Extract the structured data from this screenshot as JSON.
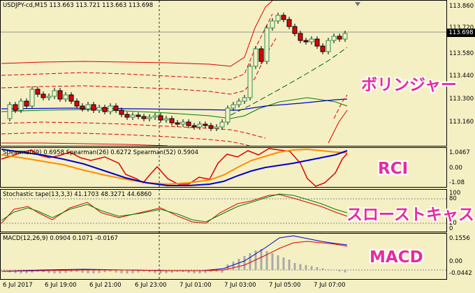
{
  "main_header": "USDJPY-cd,M15  113.663 113.721 113.663 113.698",
  "price_tag": "113.698",
  "main_axis": [
    "113.860",
    "113.720",
    "113.580",
    "113.440",
    "113.300",
    "113.160"
  ],
  "rci_header": "Spearman(9) 0.6958  Spearman(26) 0.6272  Spearman(52) 0.5904",
  "rci_axis": [
    "1.0467",
    "0.00",
    "-1.08"
  ],
  "stoch_header": "Stochastic tape(13,3,3) 41.1703  48.3271  44.6860",
  "stoch_axis": [
    "100",
    "80",
    "20",
    "0"
  ],
  "macd_header": "MACD(12,26,9) 0.0904  0.1071  -0.0167",
  "macd_axis": [
    "0.1556",
    "0.00",
    "-0.0442"
  ],
  "time_axis": [
    "6 Jul 2017",
    "6 Jul 19:00",
    "6 Jul 21:00",
    "6 Jul 23:00",
    "7 Jul 01:00",
    "7 Jul 03:00",
    "7 Jul 05:00",
    "7 Jul 07:00"
  ],
  "annotations": {
    "bollinger": "ボリンジャー",
    "rci": "RCI",
    "stochastic": "スローストキャス",
    "macd": "MACD"
  },
  "colors": {
    "background": "#f4f0c4",
    "bull": "#2e8b57",
    "bear": "#e00000",
    "band": "#e00000",
    "mid": "#0000cc",
    "annotation": "#e82aa0"
  }
}
